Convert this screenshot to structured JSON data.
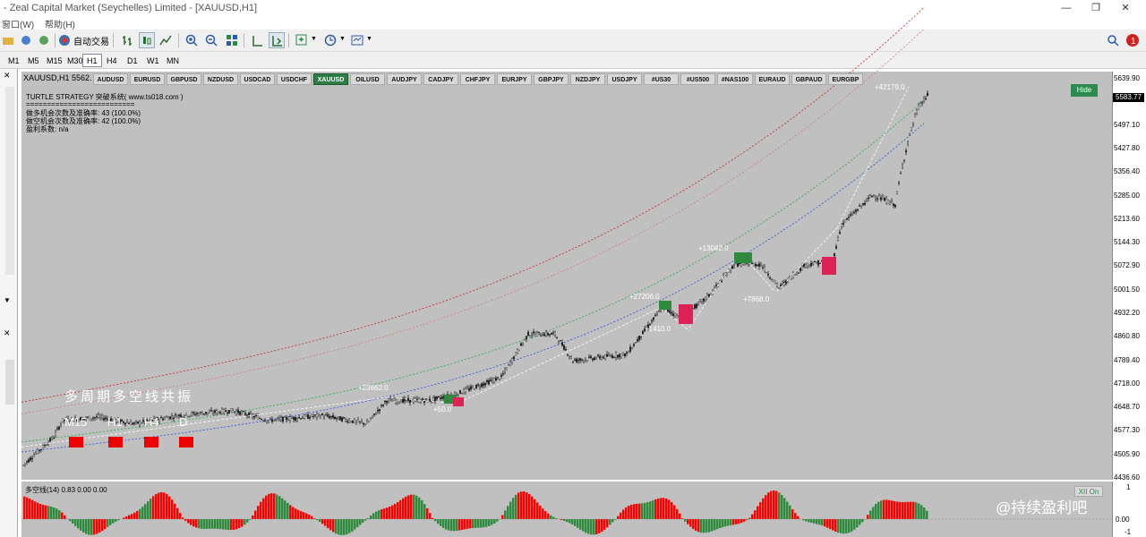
{
  "window": {
    "title": "- Zeal Capital Market (Seychelles) Limited - [XAUUSD,H1]",
    "controls": [
      "—",
      "❐",
      "✕"
    ]
  },
  "menu": {
    "items": [
      "窗口(W)",
      "帮助(H)"
    ]
  },
  "toolbar": {
    "auto_trade_label": "自动交易"
  },
  "timeframes": [
    "M1",
    "M5",
    "M15",
    "M30",
    "H1",
    "H4",
    "D1",
    "W1",
    "MN"
  ],
  "active_timeframe": "H1",
  "chart": {
    "window_header": "XAUUSD,H1  5562.",
    "symbol_tabs": [
      "AUDUSD",
      "EURUSD",
      "GBPUSD",
      "NZDUSD",
      "USDCAD",
      "USDCHF",
      "XAUUSD",
      "OILUSD",
      "AUDJPY",
      "CADJPY",
      "CHFJPY",
      "EURJPY",
      "GBPJPY",
      "NZDJPY",
      "USDJPY",
      "#US30",
      "#US500",
      "#NAS100",
      "EURAUD",
      "GBPAUD",
      "EURGBP"
    ],
    "active_symbol": "XAUUSD",
    "hide_label": "Hide",
    "info_lines": [
      "TURTLE STRATEGY 突破系统(  www.ts018.com  )",
      "==========================",
      "做多机会次数及准确率: 43 (100.0%)",
      "做空机会次数及准确率: 42 (100.0%)",
      "盈利系数: n/a"
    ],
    "price_labels": [
      "5639.90",
      "5497.10",
      "5427.80",
      "5356.40",
      "5285.00",
      "5213.60",
      "5144.30",
      "5072.90",
      "5001.50",
      "4932.20",
      "4860.80",
      "4789.40",
      "4718.00",
      "4648.70",
      "4577.30",
      "4505.90",
      "4436.60"
    ],
    "current_price": "5583.77",
    "trade_labels": [
      "+42179.0",
      "+13042.0",
      "+27206.0",
      "+1410.0",
      "+7868.0",
      "+23662.0",
      "+50.0"
    ],
    "overlay_title": "多周期多空线共振",
    "overlay_tf": [
      "M15",
      "H1",
      "H4",
      "D"
    ],
    "subchart_header": "多空线(14) 0.83 0.00 0.00",
    "subchart_button": "XII On",
    "subchart_levels": [
      "1",
      "0.00",
      "-1"
    ],
    "colors": {
      "bull": "#2e8b3d",
      "bear": "#ff0000",
      "upper_band": "#cc2222",
      "lower_band": "#2255dd",
      "mid_band": "#22aa44",
      "chart_bg": "#c0c0c0"
    }
  },
  "watermark": "@持续盈利吧"
}
